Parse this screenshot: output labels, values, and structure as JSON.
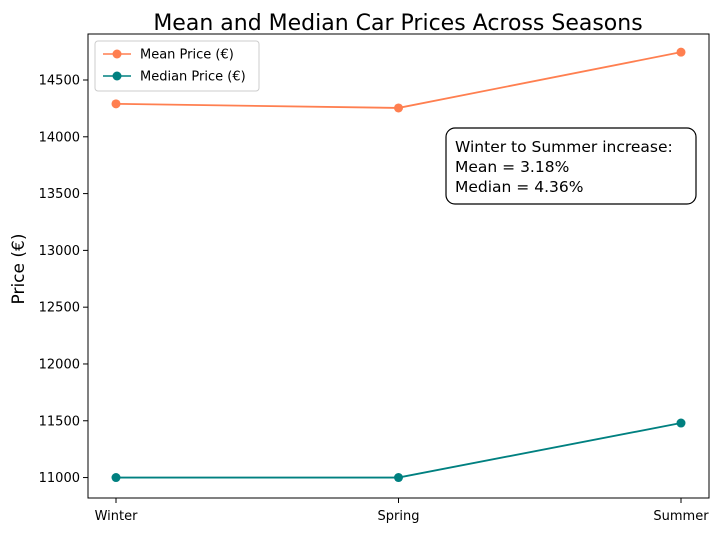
{
  "chart_data": {
    "type": "line",
    "title": "Mean and Median Car Prices Across Seasons",
    "xlabel": "",
    "ylabel": "Price (€)",
    "categories": [
      "Winter",
      "Spring",
      "Summer"
    ],
    "series": [
      {
        "name": "Mean Price (€)",
        "values": [
          14290,
          14254,
          14745
        ],
        "color": "#ff7f50"
      },
      {
        "name": "Median Price (€)",
        "values": [
          11000,
          11000,
          11480
        ],
        "color": "#008080"
      }
    ],
    "ylim": [
      10820,
      14905
    ],
    "yticks": [
      11000,
      11500,
      12000,
      12500,
      13000,
      13500,
      14000,
      14500
    ],
    "grid": false,
    "legend_position": "top-left",
    "annotation": {
      "lines": [
        "Winter to Summer increase:",
        "Mean = 3.18%",
        "Median = 4.36%"
      ]
    }
  }
}
